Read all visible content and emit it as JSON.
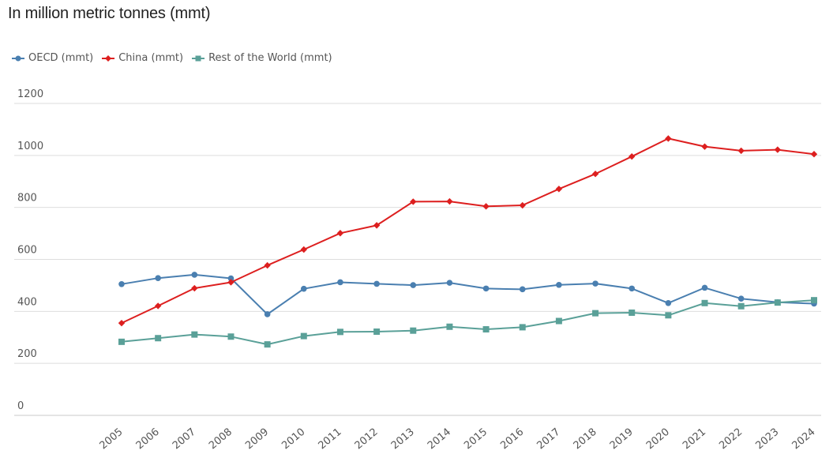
{
  "chart_data": {
    "type": "line",
    "title": "In million metric tonnes (mmt)",
    "x": [
      "2005",
      "2006",
      "2007",
      "2008",
      "2009",
      "2010",
      "2011",
      "2012",
      "2013",
      "2014",
      "2015",
      "2016",
      "2017",
      "2018",
      "2019",
      "2020",
      "2021",
      "2022",
      "2023",
      "2024"
    ],
    "series": [
      {
        "name": "OECD (mmt)",
        "color": "#4a7fb0",
        "marker": "circle",
        "values": [
          505,
          528,
          541,
          527,
          389,
          487,
          512,
          506,
          501,
          510,
          488,
          485,
          502,
          507,
          488,
          432,
          491,
          449,
          435,
          430
        ]
      },
      {
        "name": "China (mmt)",
        "color": "#dd1f1f",
        "marker": "diamond",
        "values": [
          355,
          421,
          489,
          512,
          577,
          638,
          701,
          731,
          822,
          823,
          804,
          808,
          871,
          929,
          996,
          1065,
          1034,
          1018,
          1022,
          1005
        ]
      },
      {
        "name": "Rest of the World (mmt)",
        "color": "#5aa098",
        "marker": "square",
        "values": [
          283,
          297,
          311,
          303,
          273,
          305,
          321,
          322,
          326,
          341,
          331,
          339,
          363,
          393,
          395,
          385,
          432,
          420,
          434,
          443
        ]
      }
    ],
    "yticks": [
      "0",
      "200",
      "400",
      "600",
      "800",
      "1000",
      "1200"
    ],
    "ylim": [
      0,
      1200
    ],
    "grid": true,
    "legend_position": "top-left"
  }
}
